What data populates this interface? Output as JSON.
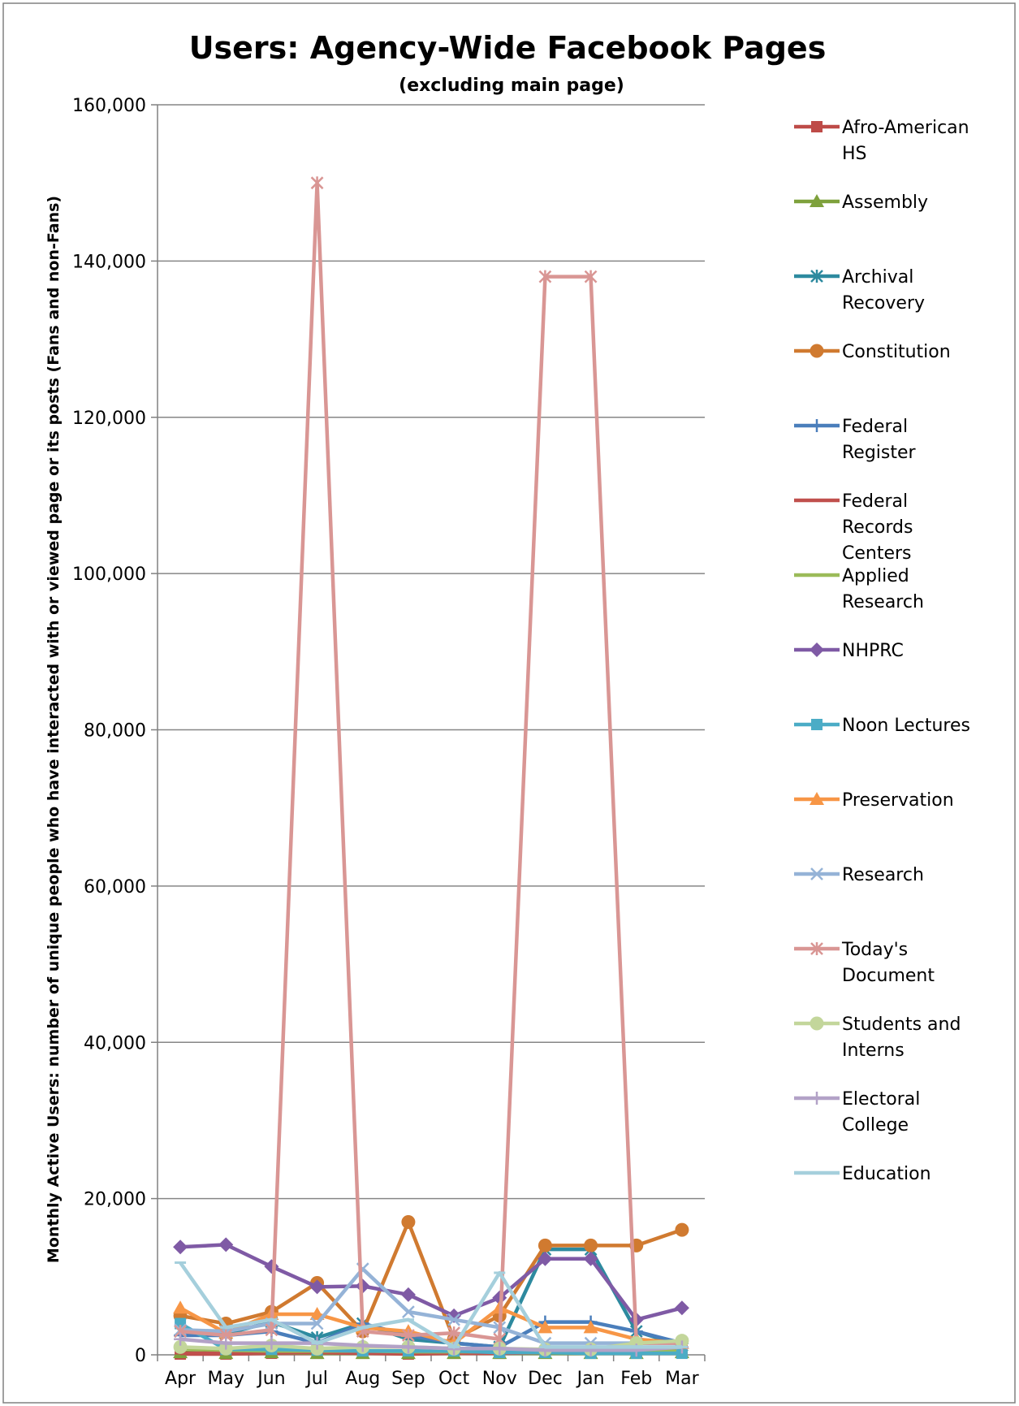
{
  "chart_data": {
    "type": "line",
    "title": "Users: Agency-Wide Facebook Pages",
    "subtitle": "(excluding main page)",
    "ylabel": "Monthly Active Users: number of unique people who have interacted with or viewed page or its posts (Fans and non-Fans)",
    "xlabel": "",
    "categories": [
      "Apr",
      "May",
      "Jun",
      "Jul",
      "Aug",
      "Sep",
      "Oct",
      "Nov",
      "Dec",
      "Jan",
      "Feb",
      "Mar"
    ],
    "ylim": [
      0,
      160000
    ],
    "yticks": [
      0,
      20000,
      40000,
      60000,
      80000,
      100000,
      120000,
      140000,
      160000
    ],
    "ytick_labels": [
      "0",
      "20,000",
      "40,000",
      "60,000",
      "80,000",
      "100,000",
      "120,000",
      "140,000",
      "160,000"
    ],
    "grid": "horizontal",
    "legend_position": "right",
    "series": [
      {
        "name": "Afro-American HS",
        "legend_lines": [
          "Afro-American",
          "HS"
        ],
        "color": "#be4b48",
        "marker": "square",
        "values": [
          100,
          100,
          200,
          200,
          200,
          100,
          200,
          200,
          300,
          400,
          400,
          800
        ]
      },
      {
        "name": "Assembly",
        "legend_lines": [
          "Assembly"
        ],
        "color": "#7ea13c",
        "marker": "triangle",
        "values": [
          300,
          200,
          300,
          200,
          200,
          200,
          200,
          200,
          200,
          200,
          200,
          300
        ]
      },
      {
        "name": "Archival Recovery",
        "legend_lines": [
          "Archival",
          "Recovery"
        ],
        "color": "#2d8a9f",
        "marker": "asterisk",
        "values": [
          3000,
          2700,
          4200,
          2200,
          4000,
          2000,
          1500,
          1000,
          13500,
          13500,
          3000,
          1200
        ]
      },
      {
        "name": "Constitution",
        "legend_lines": [
          "Constitution"
        ],
        "color": "#d07a30",
        "marker": "circle",
        "values": [
          5000,
          4000,
          5500,
          9200,
          3000,
          17000,
          2000,
          5000,
          14000,
          14000,
          14000,
          16000
        ]
      },
      {
        "name": "Federal Register",
        "legend_lines": [
          "Federal",
          "Register"
        ],
        "color": "#4a7ebb",
        "marker": "plus",
        "values": [
          2500,
          2500,
          3000,
          1500,
          4000,
          2500,
          1500,
          1000,
          4200,
          4200,
          3000,
          1500
        ]
      },
      {
        "name": "Federal Records Centers",
        "legend_lines": [
          "Federal",
          "Records",
          "Centers"
        ],
        "color": "#c0504d",
        "marker": "dash",
        "values": [
          200,
          200,
          300,
          300,
          200,
          200,
          200,
          200,
          300,
          300,
          300,
          300
        ]
      },
      {
        "name": "Applied Research",
        "legend_lines": [
          "Applied",
          "Research"
        ],
        "color": "#9bbb59",
        "marker": "dash",
        "values": [
          800,
          600,
          500,
          500,
          500,
          400,
          400,
          400,
          400,
          400,
          400,
          500
        ]
      },
      {
        "name": "NHPRC",
        "legend_lines": [
          "NHPRC"
        ],
        "color": "#7f5aa5",
        "marker": "diamond",
        "values": [
          13800,
          14100,
          11300,
          8700,
          8800,
          7700,
          5000,
          7300,
          12300,
          12300,
          4500,
          6000
        ]
      },
      {
        "name": "Noon Lectures",
        "legend_lines": [
          "Noon Lectures"
        ],
        "color": "#4bacc6",
        "marker": "square",
        "values": [
          4000,
          700,
          700,
          600,
          500,
          500,
          500,
          300,
          300,
          200,
          200,
          200
        ]
      },
      {
        "name": "Preservation",
        "legend_lines": [
          "Preservation"
        ],
        "color": "#f79646",
        "marker": "triangle",
        "values": [
          6000,
          2800,
          5200,
          5200,
          3500,
          3000,
          1500,
          6000,
          3500,
          3500,
          2000,
          1500
        ]
      },
      {
        "name": "Research",
        "legend_lines": [
          "Research"
        ],
        "color": "#95b3d7",
        "marker": "cross",
        "values": [
          3200,
          3000,
          4000,
          4000,
          11000,
          5500,
          4500,
          3500,
          1500,
          1500,
          1500,
          1500
        ]
      },
      {
        "name": "Today's Document",
        "legend_lines": [
          "Today's",
          "Document"
        ],
        "color": "#d99694",
        "marker": "asterisk",
        "values": [
          3000,
          2500,
          3200,
          150000,
          3000,
          2500,
          2800,
          2000,
          138000,
          138000,
          1500,
          1500
        ]
      },
      {
        "name": "Students and Interns",
        "legend_lines": [
          "Students and",
          "Interns"
        ],
        "color": "#c3d69b",
        "marker": "circle",
        "values": [
          1000,
          800,
          1200,
          800,
          1000,
          1000,
          800,
          800,
          700,
          700,
          1500,
          1800
        ]
      },
      {
        "name": "Electoral College",
        "legend_lines": [
          "Electoral",
          "College"
        ],
        "color": "#b3a2c7",
        "marker": "plus",
        "values": [
          2000,
          1500,
          1500,
          1500,
          1200,
          1000,
          800,
          800,
          600,
          600,
          600,
          1000
        ]
      },
      {
        "name": "Education",
        "legend_lines": [
          "Education"
        ],
        "color": "#a5cfdc",
        "marker": "dash",
        "values": [
          11800,
          3500,
          4500,
          1500,
          3500,
          4500,
          1000,
          10500,
          1000,
          1000,
          1000,
          1000
        ]
      }
    ]
  }
}
